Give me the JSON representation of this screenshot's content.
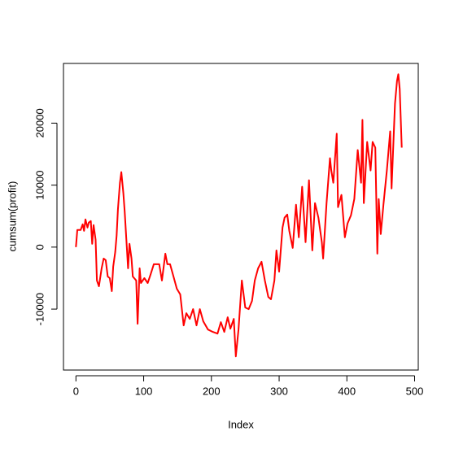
{
  "chart_data": {
    "type": "line",
    "xlabel": "Index",
    "ylabel": "cumsum(profit)",
    "x": [
      0,
      2,
      7,
      10,
      12,
      14,
      17,
      19,
      22,
      24,
      26,
      29,
      31,
      34,
      38,
      41,
      44,
      47,
      50,
      53,
      55,
      58,
      60,
      62,
      65,
      67,
      70,
      72,
      77,
      79,
      82,
      84,
      89,
      91,
      94,
      96,
      101,
      106,
      110,
      115,
      123,
      127,
      132,
      135,
      139,
      144,
      149,
      154,
      159,
      163,
      168,
      173,
      178,
      183,
      188,
      195,
      202,
      209,
      214,
      219,
      224,
      228,
      233,
      236,
      240,
      245,
      250,
      255,
      260,
      264,
      269,
      274,
      279,
      284,
      288,
      293,
      296,
      300,
      305,
      308,
      312,
      315,
      320,
      325,
      329,
      334,
      339,
      344,
      349,
      353,
      358,
      363,
      365,
      370,
      375,
      377,
      380,
      385,
      387,
      392,
      397,
      401,
      406,
      411,
      416,
      421,
      423,
      425,
      430,
      435,
      438,
      442,
      445,
      447,
      450,
      454,
      459,
      464,
      466,
      471,
      474,
      476,
      478,
      481
    ],
    "series": [
      {
        "name": "cumsum(profit)",
        "color": "#ff0000",
        "values": [
          0,
          2760,
          2760,
          3680,
          2630,
          4470,
          3160,
          3950,
          4210,
          530,
          3550,
          1180,
          -5390,
          -6320,
          -3420,
          -1840,
          -2100,
          -4740,
          -5000,
          -7100,
          -3160,
          -790,
          1840,
          6050,
          10390,
          12100,
          8680,
          5790,
          -3420,
          530,
          -1840,
          -4740,
          -5390,
          -12370,
          -3420,
          -5790,
          -5000,
          -5790,
          -4470,
          -2760,
          -2760,
          -5390,
          -1050,
          -2760,
          -2760,
          -4740,
          -6710,
          -7630,
          -12630,
          -10660,
          -11580,
          -10000,
          -12630,
          -10000,
          -11970,
          -13290,
          -13680,
          -13950,
          -12100,
          -13680,
          -11320,
          -13160,
          -11580,
          -17630,
          -13290,
          -5390,
          -9740,
          -10000,
          -8680,
          -5390,
          -3420,
          -2370,
          -5390,
          -8030,
          -8420,
          -5390,
          -530,
          -3950,
          3160,
          4740,
          5260,
          2630,
          -130,
          6840,
          1580,
          9740,
          790,
          10790,
          -530,
          7110,
          4740,
          790,
          -1840,
          7110,
          14340,
          12370,
          10390,
          18290,
          6450,
          8420,
          1580,
          3820,
          5130,
          7760,
          15660,
          10390,
          20530,
          7110,
          16970,
          12370,
          16970,
          16050,
          -1050,
          7760,
          2110,
          6840,
          12370,
          18680,
          9470,
          23160,
          26840,
          27890,
          25530,
          16050
        ]
      }
    ],
    "xlim": [
      -18.4,
      505.4
    ],
    "xticks": [
      0,
      100,
      200,
      300,
      400,
      500
    ],
    "ylim": [
      -19830,
      29630
    ],
    "yticks": [
      -10000,
      0,
      10000,
      20000
    ],
    "grid": false
  }
}
